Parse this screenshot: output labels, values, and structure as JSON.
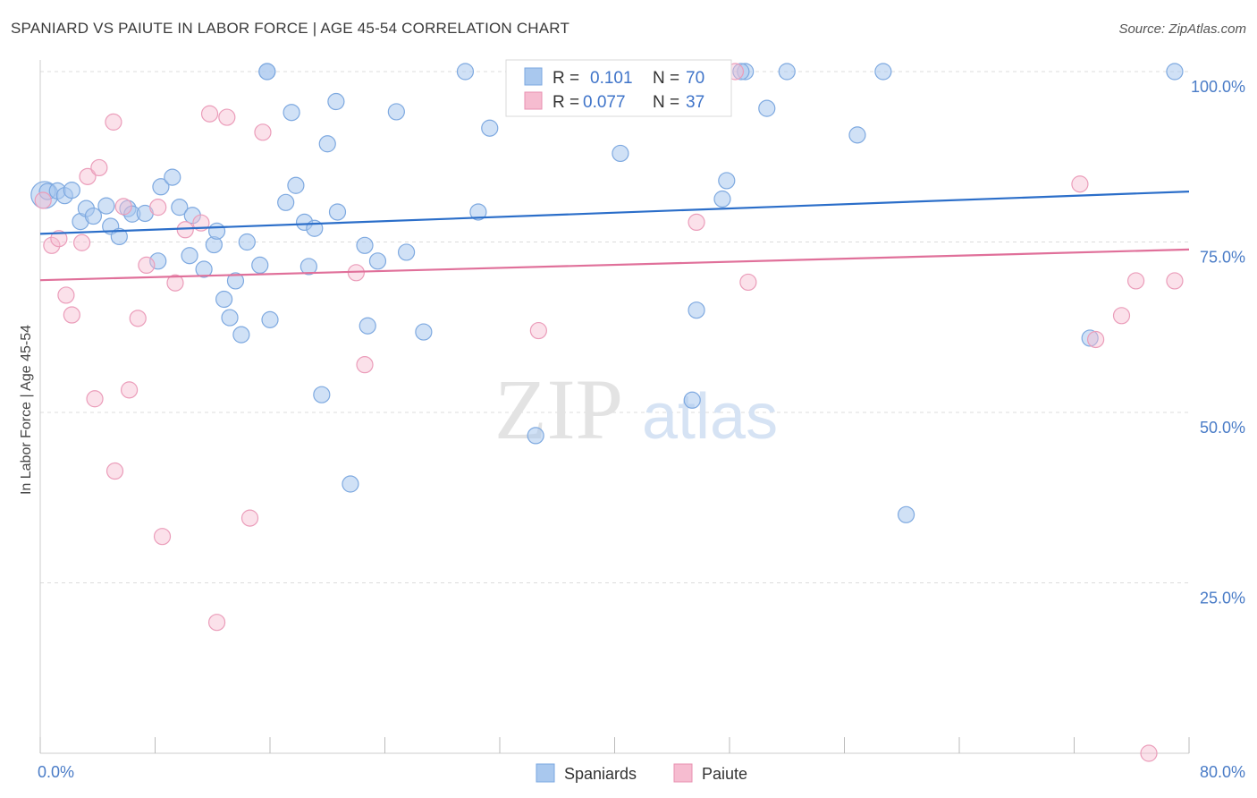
{
  "title": "SPANIARD VS PAIUTE IN LABOR FORCE | AGE 45-54 CORRELATION CHART",
  "source": "Source: ZipAtlas.com",
  "watermark": {
    "zip": "ZIP",
    "atlas": "atlas"
  },
  "chart_data": {
    "type": "scatter",
    "ylabel": "In Labor Force | Age 45-54",
    "xlim": [
      0,
      80
    ],
    "ylim": [
      0,
      102
    ],
    "x_tick_labels": [
      "0.0%",
      "80.0%"
    ],
    "y_ticks": [
      25,
      50,
      75,
      100
    ],
    "y_tick_labels": [
      "25.0%",
      "50.0%",
      "75.0%",
      "100.0%"
    ],
    "grid": true,
    "colors": {
      "Spaniards": "#a9c8ee",
      "Spaniards_line": "#2b6ec9",
      "Paiute": "#f6bcd0",
      "Paiute_line": "#e0709a"
    },
    "legend": {
      "placement": "top-center",
      "rows": [
        {
          "r_label": "R =",
          "r_value": "0.101",
          "n_label": "N =",
          "n_value": "70"
        },
        {
          "r_label": "R =",
          "r_value": "0.077",
          "n_label": "N =",
          "n_value": "37"
        }
      ]
    },
    "series": [
      {
        "name": "Spaniards",
        "trend": {
          "x": [
            0,
            80
          ],
          "y": [
            76.2,
            82.4
          ]
        },
        "points": [
          [
            0.3,
            81.9
          ],
          [
            0.5,
            82.4
          ],
          [
            1.2,
            82.5
          ],
          [
            1.7,
            81.8
          ],
          [
            2.2,
            82.6
          ],
          [
            2.8,
            78.0
          ],
          [
            3.2,
            79.9
          ],
          [
            3.7,
            78.8
          ],
          [
            4.6,
            80.3
          ],
          [
            4.9,
            77.3
          ],
          [
            5.5,
            75.8
          ],
          [
            6.1,
            79.9
          ],
          [
            6.4,
            79.1
          ],
          [
            7.3,
            79.2
          ],
          [
            8.2,
            72.2
          ],
          [
            8.4,
            83.1
          ],
          [
            9.2,
            84.5
          ],
          [
            9.7,
            80.1
          ],
          [
            10.4,
            73.0
          ],
          [
            10.6,
            78.9
          ],
          [
            11.4,
            71.0
          ],
          [
            12.1,
            74.6
          ],
          [
            12.3,
            76.6
          ],
          [
            12.8,
            66.6
          ],
          [
            13.2,
            63.9
          ],
          [
            13.6,
            69.3
          ],
          [
            14.0,
            61.4
          ],
          [
            14.4,
            75.0
          ],
          [
            15.3,
            71.6
          ],
          [
            15.8,
            100.0
          ],
          [
            16.0,
            63.6
          ],
          [
            17.1,
            80.8
          ],
          [
            17.5,
            94.0
          ],
          [
            17.8,
            83.3
          ],
          [
            18.4,
            77.9
          ],
          [
            18.7,
            71.4
          ],
          [
            19.1,
            77.0
          ],
          [
            19.6,
            52.6
          ],
          [
            20.0,
            89.4
          ],
          [
            20.6,
            95.6
          ],
          [
            20.7,
            79.4
          ],
          [
            21.6,
            39.5
          ],
          [
            22.6,
            74.5
          ],
          [
            22.8,
            62.7
          ],
          [
            23.5,
            72.2
          ],
          [
            24.8,
            94.1
          ],
          [
            25.5,
            73.5
          ],
          [
            26.7,
            61.8
          ],
          [
            29.6,
            100.0
          ],
          [
            30.5,
            79.4
          ],
          [
            31.3,
            91.7
          ],
          [
            33.0,
            100.0
          ],
          [
            34.5,
            46.6
          ],
          [
            35.1,
            100.0
          ],
          [
            40.4,
            88.0
          ],
          [
            41.6,
            100.0
          ],
          [
            45.4,
            51.8
          ],
          [
            45.7,
            65.0
          ],
          [
            47.5,
            81.3
          ],
          [
            47.8,
            84.0
          ],
          [
            49.1,
            100.0
          ],
          [
            50.6,
            94.6
          ],
          [
            52.0,
            100.0
          ],
          [
            56.9,
            90.7
          ],
          [
            58.7,
            100.0
          ],
          [
            60.3,
            35.0
          ],
          [
            73.1,
            60.9
          ],
          [
            79.0,
            100.0
          ],
          [
            48.8,
            100.0
          ],
          [
            15.8,
            100.0
          ]
        ]
      },
      {
        "name": "Paiute",
        "trend": {
          "x": [
            0,
            80
          ],
          "y": [
            69.4,
            73.9
          ]
        },
        "points": [
          [
            0.2,
            81.1
          ],
          [
            0.8,
            74.5
          ],
          [
            1.3,
            75.5
          ],
          [
            1.8,
            67.2
          ],
          [
            2.2,
            64.3
          ],
          [
            2.9,
            74.9
          ],
          [
            3.3,
            84.6
          ],
          [
            3.8,
            52.0
          ],
          [
            4.1,
            85.9
          ],
          [
            5.1,
            92.6
          ],
          [
            5.2,
            41.4
          ],
          [
            5.8,
            80.2
          ],
          [
            6.2,
            53.3
          ],
          [
            6.8,
            63.8
          ],
          [
            7.4,
            71.6
          ],
          [
            8.2,
            80.1
          ],
          [
            8.5,
            31.8
          ],
          [
            9.4,
            69.0
          ],
          [
            10.1,
            76.8
          ],
          [
            11.2,
            77.8
          ],
          [
            11.8,
            93.8
          ],
          [
            12.3,
            19.2
          ],
          [
            13.0,
            93.3
          ],
          [
            14.6,
            34.5
          ],
          [
            15.5,
            91.1
          ],
          [
            22.0,
            70.5
          ],
          [
            22.6,
            57.0
          ],
          [
            34.7,
            62.0
          ],
          [
            45.7,
            77.9
          ],
          [
            48.4,
            100.0
          ],
          [
            49.3,
            69.1
          ],
          [
            72.4,
            83.5
          ],
          [
            73.5,
            60.7
          ],
          [
            75.3,
            64.2
          ],
          [
            76.3,
            69.3
          ],
          [
            77.2,
            0.0
          ],
          [
            79.0,
            69.3
          ]
        ]
      }
    ]
  }
}
